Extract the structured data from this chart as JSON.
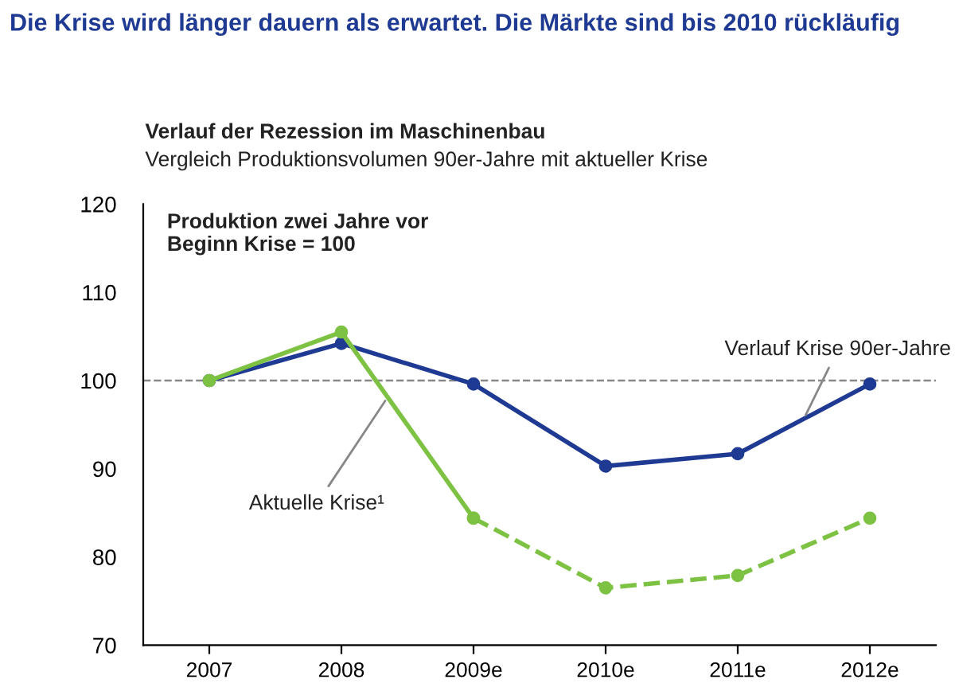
{
  "chart_data": {
    "type": "line",
    "title": "Die Krise wird länger dauern als erwartet. Die Märkte sind bis 2010 rückläufig",
    "subtitle": "Verlauf der Rezession im Maschinenbau",
    "categories": [
      "2007",
      "2008",
      "2009e",
      "2010e",
      "2011e",
      "2012e"
    ],
    "series": [
      {
        "name": "Verlauf Krise 90er-Jahre",
        "color": "#1f3a93",
        "values": [
          100,
          104.2,
          99.6,
          90.3,
          91.7,
          99.6
        ],
        "line_style": "solid"
      },
      {
        "name": "Aktuelle Krise¹",
        "color": "#7dc242",
        "values": [
          100,
          105.5,
          84.4,
          null,
          null,
          null
        ],
        "line_style": "solid"
      },
      {
        "color": "#7dc242",
        "values": [
          null,
          null,
          84.4,
          76.5,
          77.9,
          84.4
        ],
        "line_style": "dashed"
      }
    ],
    "ylim": [
      70,
      120
    ],
    "yticks": [
      70,
      80,
      90,
      100,
      110,
      120
    ],
    "ref_lines": [
      {
        "axis": "y",
        "value": 100,
        "color": "#888888",
        "line_style": "dashed"
      }
    ],
    "annotations": [
      "Vergleich Produktionsvolumen 90er-Jahre mit aktueller Krise",
      "Produktion zwei Jahre vor\nBeginn Krise = 100"
    ],
    "marker": "circle",
    "grid": false,
    "legend": false
  }
}
